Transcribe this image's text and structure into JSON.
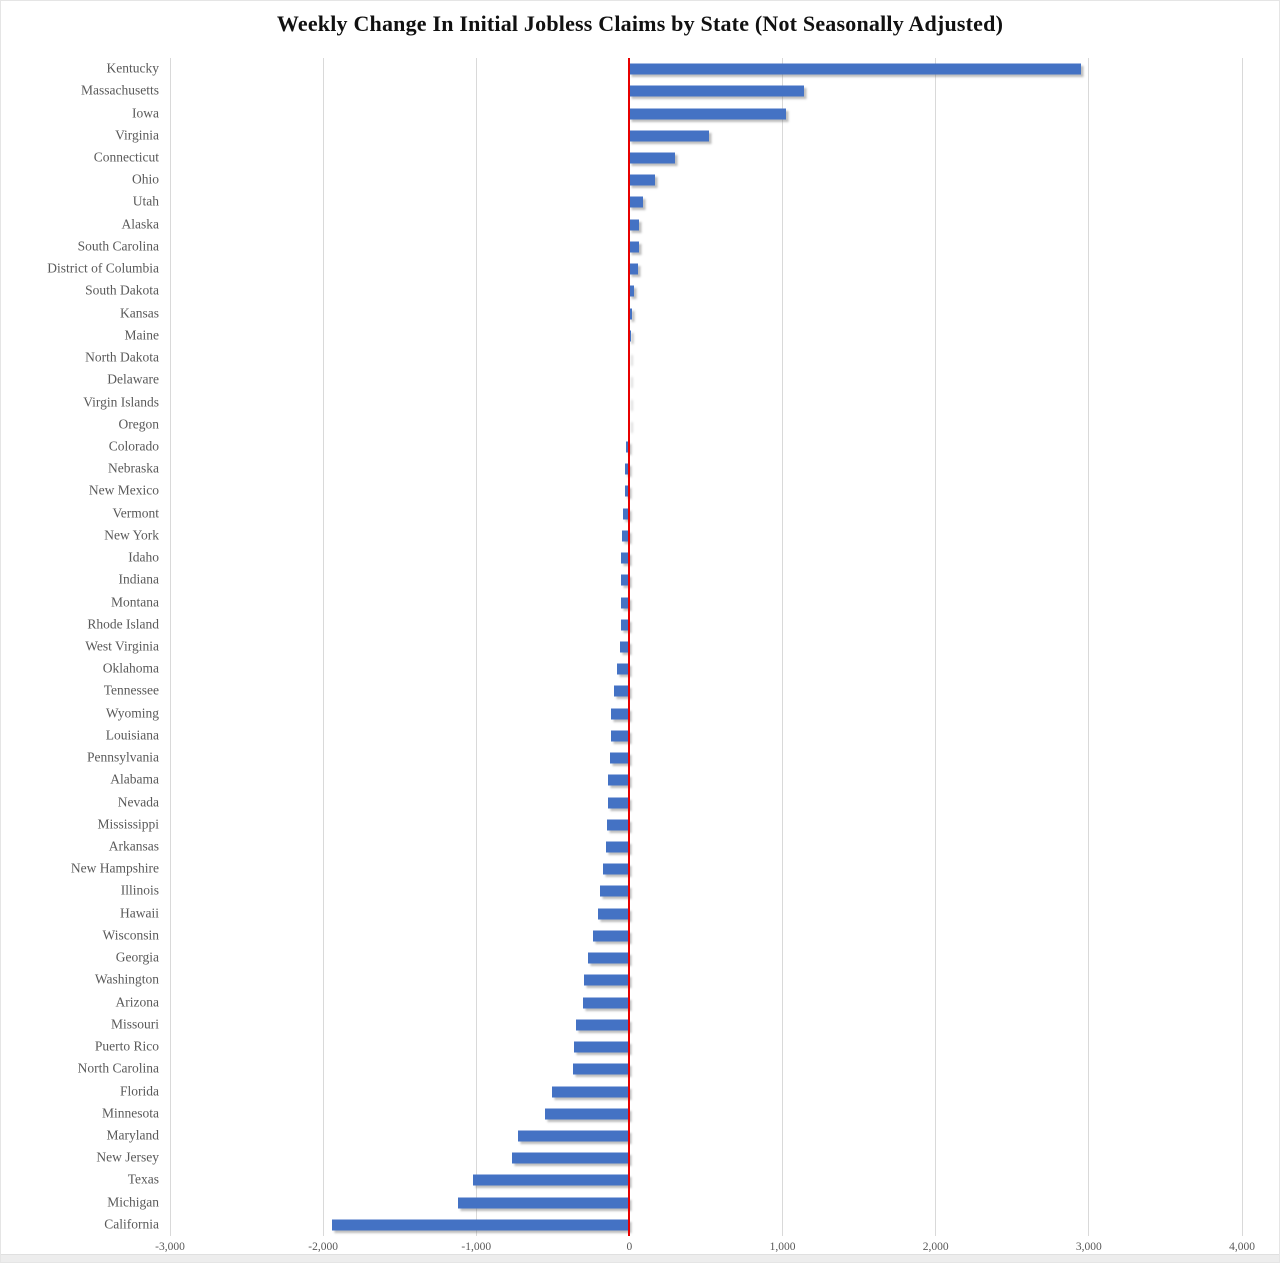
{
  "chart_data": {
    "type": "bar",
    "orientation": "horizontal",
    "title": "Weekly Change In Initial Jobless Claims by State (Not Seasonally Adjusted)",
    "categories": [
      "Kentucky",
      "Massachusetts",
      "Iowa",
      "Virginia",
      "Connecticut",
      "Ohio",
      "Utah",
      "Alaska",
      "South Carolina",
      "District of Columbia",
      "South Dakota",
      "Kansas",
      "Maine",
      "North Dakota",
      "Delaware",
      "Virgin Islands",
      "Oregon",
      "Colorado",
      "Nebraska",
      "New Mexico",
      "Vermont",
      "New York",
      "Idaho",
      "Indiana",
      "Montana",
      "Rhode Island",
      "West Virginia",
      "Oklahoma",
      "Tennessee",
      "Wyoming",
      "Louisiana",
      "Pennsylvania",
      "Alabama",
      "Nevada",
      "Mississippi",
      "Arkansas",
      "New Hampshire",
      "Illinois",
      "Hawaii",
      "Wisconsin",
      "Georgia",
      "Washington",
      "Arizona",
      "Missouri",
      "Puerto Rico",
      "North Carolina",
      "Florida",
      "Minnesota",
      "Maryland",
      "New Jersey",
      "Texas",
      "Michigan",
      "California"
    ],
    "values": [
      2950,
      1140,
      1020,
      520,
      295,
      170,
      90,
      62,
      60,
      55,
      32,
      17,
      8,
      5,
      4,
      2,
      -3,
      -25,
      -30,
      -32,
      -42,
      -50,
      -52,
      -54,
      -56,
      -58,
      -60,
      -80,
      -100,
      -118,
      -122,
      -130,
      -140,
      -142,
      -145,
      -155,
      -175,
      -192,
      -205,
      -235,
      -272,
      -295,
      -300,
      -350,
      -360,
      -370,
      -505,
      -550,
      -730,
      -770,
      -1020,
      -1120,
      -1940
    ],
    "xlabel": "",
    "ylabel": "",
    "xlim": [
      -3000,
      4000
    ],
    "x_tick_labels": [
      "-3,000",
      "-2,000",
      "-1,000",
      "0",
      "1,000",
      "2,000",
      "3,000",
      "4,000"
    ],
    "grid": true,
    "legend": false,
    "bar_color": "#4472C4",
    "zero_line_color": "#E80000",
    "gridline_color": "#D9D9D9",
    "label_color": "#595959"
  }
}
